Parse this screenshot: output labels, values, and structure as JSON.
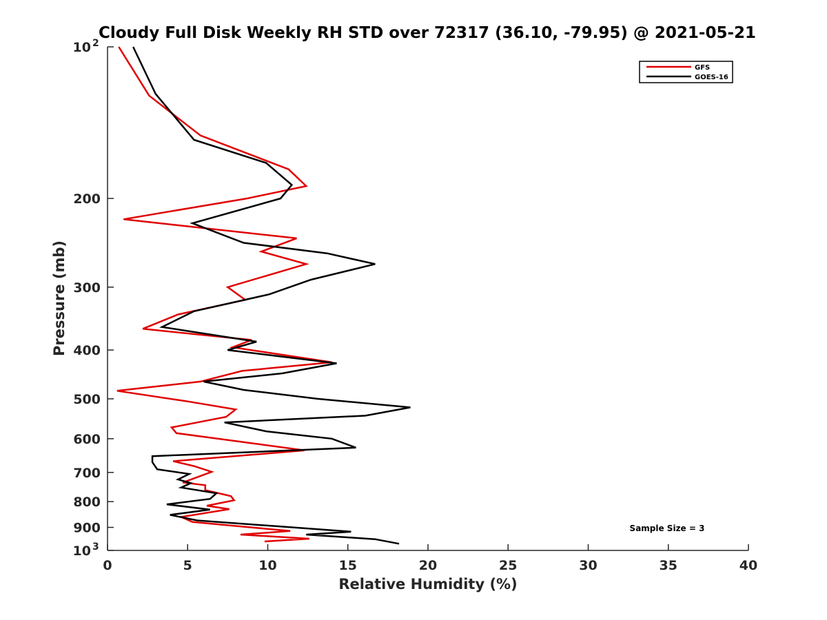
{
  "chart_data": {
    "type": "line",
    "title": "Cloudy Full Disk Weekly RH STD over 72317 (36.10, -79.95) @ 2021-05-21",
    "xlabel": "Relative Humidity (%)",
    "ylabel": "Pressure (mb)",
    "xlim": [
      0,
      40
    ],
    "ylim": [
      100,
      1000
    ],
    "y_scale": "log",
    "y_reversed": true,
    "x_ticks": [
      0,
      5,
      10,
      15,
      20,
      25,
      30,
      35,
      40
    ],
    "y_ticks": [
      {
        "value": 100,
        "label": "10",
        "exp": "2"
      },
      {
        "value": 200,
        "label": "200"
      },
      {
        "value": 300,
        "label": "300"
      },
      {
        "value": 400,
        "label": "400"
      },
      {
        "value": 500,
        "label": "500"
      },
      {
        "value": 600,
        "label": "600"
      },
      {
        "value": 700,
        "label": "700"
      },
      {
        "value": 800,
        "label": "800"
      },
      {
        "value": 900,
        "label": "900"
      },
      {
        "value": 1000,
        "label": "10",
        "exp": "3"
      }
    ],
    "grid": false,
    "legend_position": "top-right",
    "annotation": "Sample Size = 3",
    "series": [
      {
        "name": "GFS",
        "color": "#e00000",
        "points": [
          [
            0.7,
            100
          ],
          [
            2.6,
            125
          ],
          [
            5.8,
            150
          ],
          [
            11.3,
            175
          ],
          [
            12.4,
            189
          ],
          [
            8.7,
            200
          ],
          [
            1.0,
            220
          ],
          [
            11.8,
            240
          ],
          [
            9.6,
            255
          ],
          [
            12.4,
            270
          ],
          [
            7.5,
            300
          ],
          [
            8.6,
            318
          ],
          [
            4.4,
            340
          ],
          [
            2.2,
            363
          ],
          [
            9.0,
            382
          ],
          [
            7.8,
            395
          ],
          [
            14.0,
            423
          ],
          [
            8.4,
            440
          ],
          [
            5.8,
            462
          ],
          [
            0.6,
            482
          ],
          [
            5.0,
            506
          ],
          [
            8.0,
            525
          ],
          [
            7.4,
            543
          ],
          [
            4.0,
            570
          ],
          [
            4.3,
            585
          ],
          [
            8.6,
            610
          ],
          [
            12.3,
            633
          ],
          [
            4.1,
            665
          ],
          [
            5.4,
            680
          ],
          [
            6.5,
            698
          ],
          [
            4.7,
            733
          ],
          [
            6.1,
            742
          ],
          [
            6.1,
            759
          ],
          [
            7.7,
            780
          ],
          [
            7.9,
            795
          ],
          [
            6.2,
            815
          ],
          [
            7.6,
            828
          ],
          [
            4.6,
            858
          ],
          [
            5.3,
            878
          ],
          [
            11.4,
            915
          ],
          [
            8.3,
            930
          ],
          [
            12.6,
            948
          ],
          [
            9.8,
            960
          ]
        ]
      },
      {
        "name": "GOES-16",
        "color": "#000000",
        "points": [
          [
            1.6,
            100
          ],
          [
            3.0,
            124
          ],
          [
            5.4,
            153
          ],
          [
            9.9,
            170
          ],
          [
            11.5,
            188
          ],
          [
            10.8,
            200
          ],
          [
            5.3,
            224
          ],
          [
            8.5,
            245
          ],
          [
            13.7,
            257
          ],
          [
            16.7,
            270
          ],
          [
            12.7,
            290
          ],
          [
            10.1,
            310
          ],
          [
            5.4,
            335
          ],
          [
            3.4,
            360
          ],
          [
            9.3,
            385
          ],
          [
            7.5,
            400
          ],
          [
            14.3,
            425
          ],
          [
            10.9,
            445
          ],
          [
            6.0,
            462
          ],
          [
            8.5,
            480
          ],
          [
            13.1,
            500
          ],
          [
            18.9,
            520
          ],
          [
            16.1,
            540
          ],
          [
            7.3,
            557
          ],
          [
            9.9,
            580
          ],
          [
            14.0,
            600
          ],
          [
            15.5,
            625
          ],
          [
            2.8,
            650
          ],
          [
            2.8,
            668
          ],
          [
            3.1,
            690
          ],
          [
            5.1,
            705
          ],
          [
            4.4,
            723
          ],
          [
            5.2,
            735
          ],
          [
            4.6,
            750
          ],
          [
            6.8,
            770
          ],
          [
            6.4,
            790
          ],
          [
            3.7,
            810
          ],
          [
            6.4,
            830
          ],
          [
            3.9,
            850
          ],
          [
            5.6,
            872
          ],
          [
            10.5,
            895
          ],
          [
            15.2,
            918
          ],
          [
            12.4,
            930
          ],
          [
            16.7,
            950
          ],
          [
            18.2,
            970
          ]
        ]
      }
    ]
  }
}
